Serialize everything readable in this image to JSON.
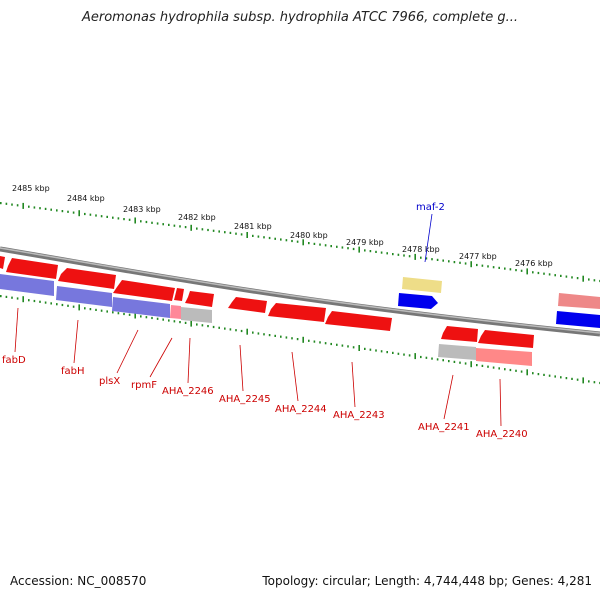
{
  "title": "Aeromonas hydrophila subsp. hydrophila ATCC 7966, complete g...",
  "footer": {
    "accession": "Accession: NC_008570",
    "summary": "Topology: circular; Length: 4,744,448 bp; Genes: 4,281"
  },
  "ticks": [
    "2485 kbp",
    "2484 kbp",
    "2483 kbp",
    "2482 kbp",
    "2481 kbp",
    "2480 kbp",
    "2479 kbp",
    "2478 kbp",
    "2477 kbp",
    "2476 kbp"
  ],
  "genes": [
    {
      "label": "fabD",
      "color": "#cc0000"
    },
    {
      "label": "fabH",
      "color": "#cc0000"
    },
    {
      "label": "plsX",
      "color": "#cc0000"
    },
    {
      "label": "rpmF",
      "color": "#cc0000"
    },
    {
      "label": "AHA_2246",
      "color": "#cc0000"
    },
    {
      "label": "AHA_2245",
      "color": "#cc0000"
    },
    {
      "label": "AHA_2244",
      "color": "#cc0000"
    },
    {
      "label": "AHA_2243",
      "color": "#cc0000"
    },
    {
      "label": "AHA_2241",
      "color": "#cc0000"
    },
    {
      "label": "AHA_2240",
      "color": "#cc0000"
    },
    {
      "label": "maf-2",
      "color": "#0000cc"
    }
  ],
  "colors": {
    "backbone": "#888888",
    "cds": "#ff0000",
    "gene_track": "#7777dd",
    "rna": "#eedd88",
    "blue_feature": "#0000ee",
    "gray_feature": "#bbbbbb",
    "pink_feature": "#ff8888",
    "tick": "#228822"
  }
}
